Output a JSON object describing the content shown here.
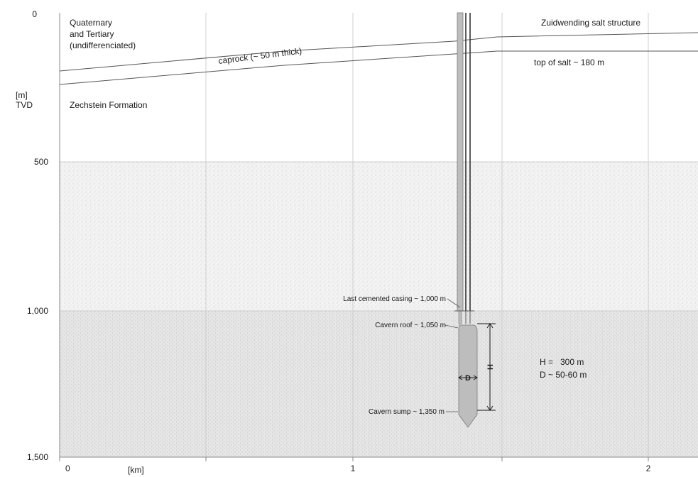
{
  "axes": {
    "y_unit": "[m]",
    "y_unit_sub": "TVD",
    "x_unit": "[km]",
    "y_ticks": [
      "0",
      "500",
      "1,000",
      "1,500"
    ],
    "x_ticks": [
      "0",
      "1",
      "2"
    ]
  },
  "labels": {
    "quaternary_line1": "Quaternary",
    "quaternary_line2": "and Tertiary",
    "quaternary_line3": "(undifferenciated)",
    "caprock": "caprock (~ 50 m thick)",
    "zuidwending": "Zuidwending salt structure",
    "top_of_salt": "top of salt ~ 180 m",
    "zechstein": "Zechstein Formation",
    "casing": "Last cemented casing ~ 1,000 m",
    "cavern_roof": "Cavern roof ~ 1,050 m",
    "cavern_sump": "Cavern sump ~ 1,350 m",
    "h_symbol": "H",
    "d_symbol": "D",
    "h_value": "H =   300 m",
    "d_value": "D ~ 50-60 m"
  },
  "colors": {
    "salt_zone": "#f1f1f1",
    "deep_zone": "#e6e6e6",
    "cavern": "#bdbdbd",
    "grid": "#cfcfcf",
    "ink": "#1a1a1a"
  }
}
